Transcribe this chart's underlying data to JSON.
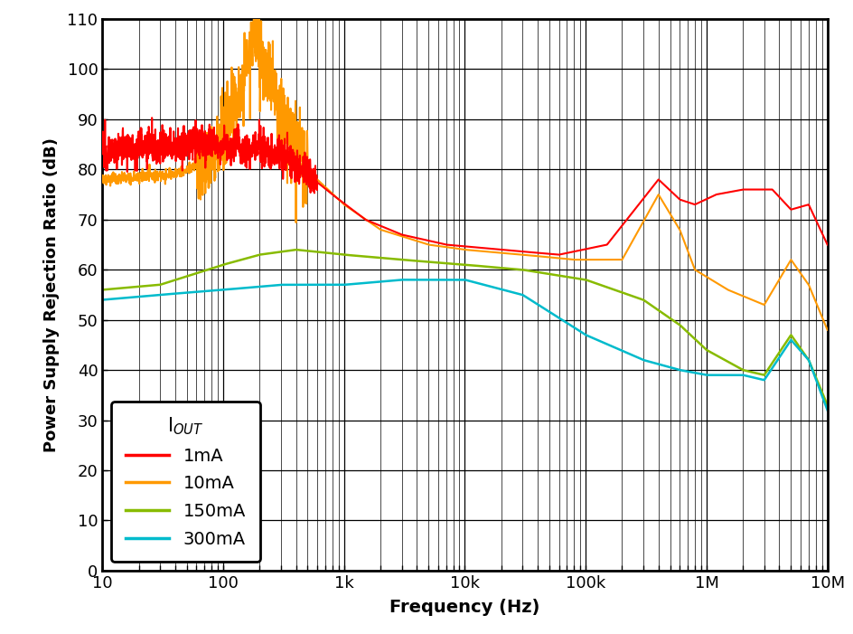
{
  "xlabel": "Frequency (Hz)",
  "ylabel": "Power Supply Rejection Ratio (dB)",
  "xlim": [
    10,
    10000000
  ],
  "ylim": [
    0,
    110
  ],
  "yticks": [
    0,
    10,
    20,
    30,
    40,
    50,
    60,
    70,
    80,
    90,
    100,
    110
  ],
  "xtick_labels": {
    "10": "10",
    "100": "100",
    "1000": "1k",
    "10000": "10k",
    "100000": "100k",
    "1000000": "1M",
    "10000000": "10M"
  },
  "colors": {
    "1mA": "#ff0000",
    "10mA": "#ff9900",
    "150mA": "#88bb00",
    "300mA": "#00bbcc"
  },
  "background_color": "#ffffff",
  "legend_title": "I$_{OUT}$",
  "legend_entries": [
    "1mA",
    "10mA",
    "150mA",
    "300mA"
  ]
}
